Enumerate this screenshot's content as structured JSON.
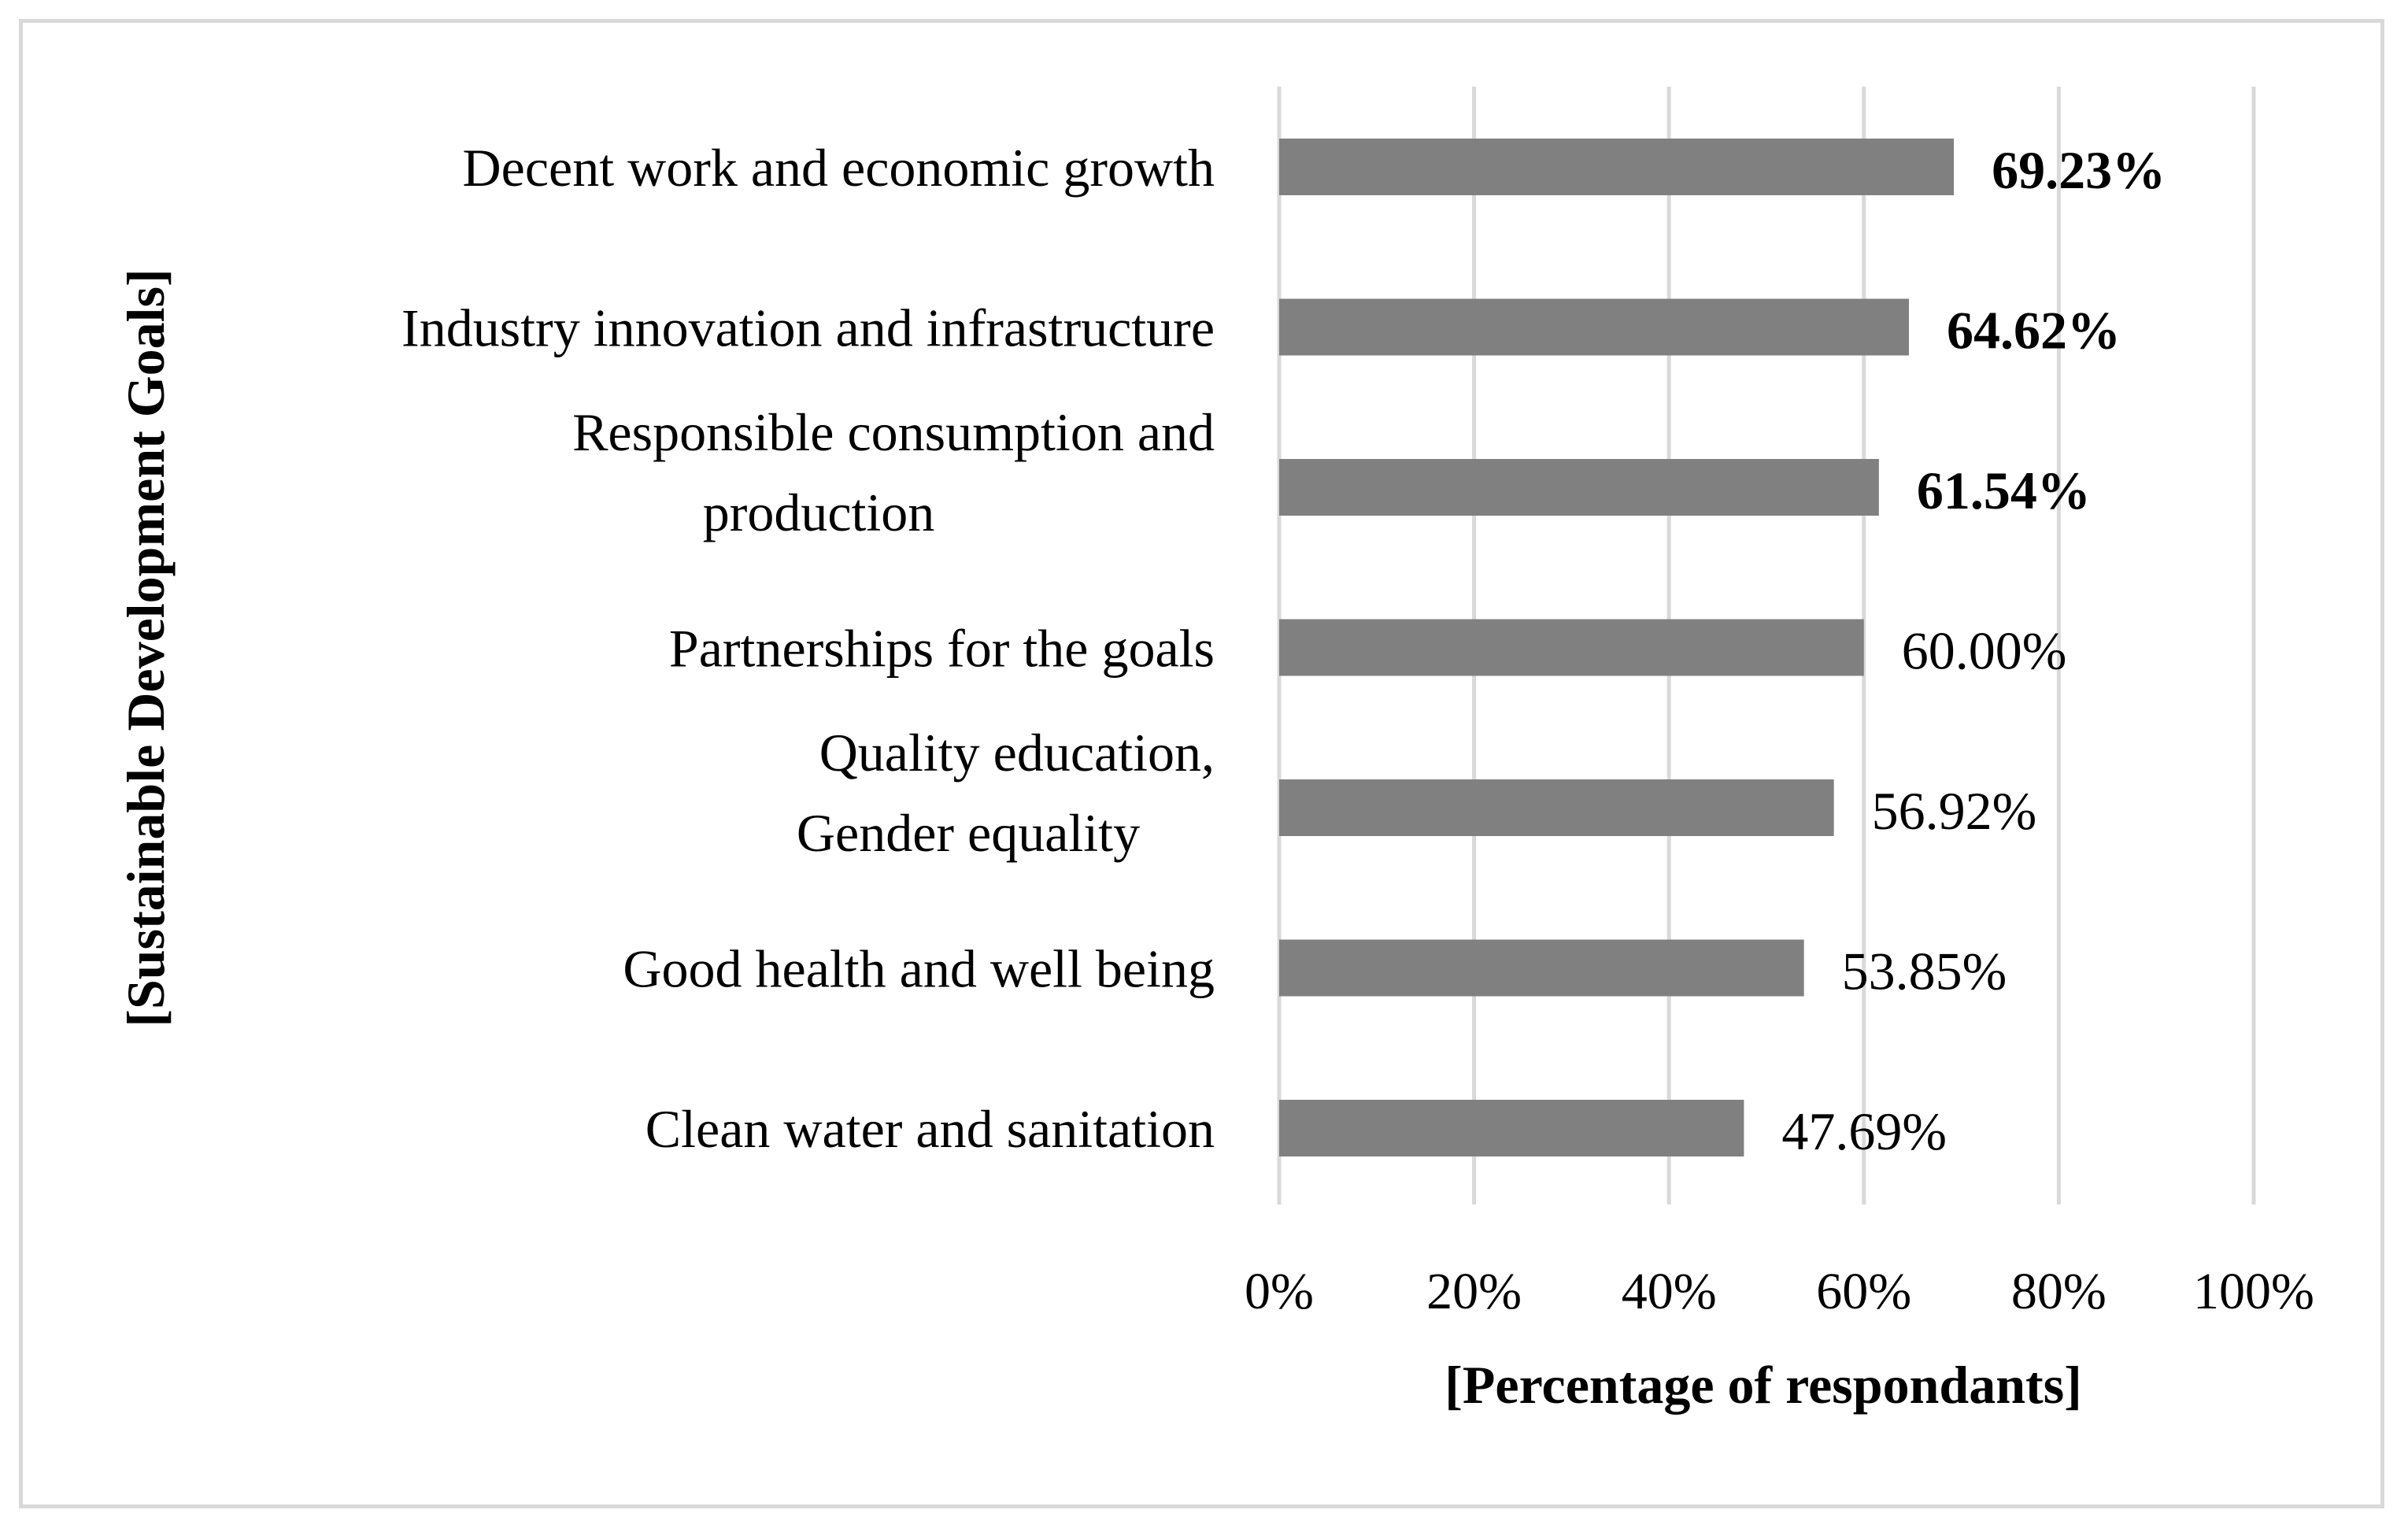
{
  "chart_data": {
    "type": "bar",
    "orientation": "horizontal",
    "categories": [
      [
        "Decent work and economic growth"
      ],
      [
        "Industry innovation and infrastructure"
      ],
      [
        "Responsible consumption and",
        "production"
      ],
      [
        "Partnerships for the goals"
      ],
      [
        "Quality education,",
        "Gender equality"
      ],
      [
        "Good health and well being"
      ],
      [
        "Clean water and sanitation"
      ]
    ],
    "values": [
      69.23,
      64.62,
      61.54,
      60.0,
      56.92,
      53.85,
      47.69
    ],
    "value_labels": [
      "69.23%",
      "64.62%",
      "61.54%",
      "60.00%",
      "56.92%",
      "53.85%",
      "47.69%"
    ],
    "bold_value_labels": [
      true,
      true,
      true,
      false,
      false,
      false,
      false
    ],
    "xlim": [
      0,
      100
    ],
    "xticks": [
      0,
      20,
      40,
      60,
      80,
      100
    ],
    "xtick_labels": [
      "0%",
      "20%",
      "40%",
      "60%",
      "80%",
      "100%"
    ],
    "xlabel": "[Percentage of respondants]",
    "ylabel": "[Sustainable Development Goals]",
    "title": "",
    "grid": true,
    "bar_color": "#808080",
    "grid_color": "#d9d9d9"
  }
}
